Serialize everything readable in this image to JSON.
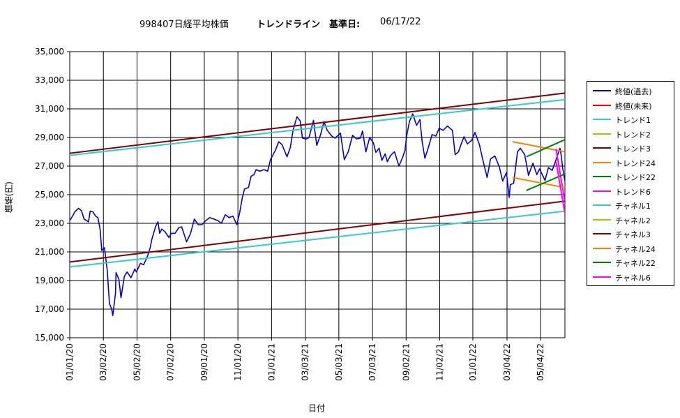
{
  "title": {
    "part1": "998407日経平均株価",
    "part2": "トレンドライン　基準日:",
    "part3": "06/17/22"
  },
  "chart_data": {
    "type": "line",
    "xlabel": "日付",
    "ylabel": "価格(円)",
    "ylim": [
      15000,
      35000
    ],
    "yticks": [
      "15,000",
      "17,000",
      "19,000",
      "21,000",
      "23,000",
      "25,000",
      "27,000",
      "29,000",
      "31,000",
      "33,000",
      "35,000"
    ],
    "xlim": [
      "2020-01-01",
      "2022-06-17"
    ],
    "xticks": [
      "01/01/20",
      "03/02/20",
      "05/02/20",
      "07/02/20",
      "09/01/20",
      "11/01/20",
      "01/01/21",
      "03/03/21",
      "05/03/21",
      "07/03/21",
      "09/02/21",
      "11/02/21",
      "01/01/22",
      "03/04/22",
      "05/04/22"
    ],
    "grid": true,
    "legend_position": "right",
    "series": [
      {
        "name": "終値(過去)",
        "color": "#0000dd",
        "values": [
          [
            "2020-01-01",
            23200
          ],
          [
            "2020-01-06",
            23500
          ],
          [
            "2020-01-10",
            23800
          ],
          [
            "2020-01-17",
            24050
          ],
          [
            "2020-01-22",
            23900
          ],
          [
            "2020-01-27",
            23300
          ],
          [
            "2020-01-31",
            23200
          ],
          [
            "2020-02-04",
            23100
          ],
          [
            "2020-02-07",
            23850
          ],
          [
            "2020-02-12",
            23800
          ],
          [
            "2020-02-17",
            23500
          ],
          [
            "2020-02-21",
            23400
          ],
          [
            "2020-02-25",
            22600
          ],
          [
            "2020-02-28",
            21100
          ],
          [
            "2020-03-04",
            21300
          ],
          [
            "2020-03-09",
            19700
          ],
          [
            "2020-03-13",
            17400
          ],
          [
            "2020-03-17",
            17000
          ],
          [
            "2020-03-19",
            16550
          ],
          [
            "2020-03-24",
            18100
          ],
          [
            "2020-03-25",
            19550
          ],
          [
            "2020-03-30",
            19100
          ],
          [
            "2020-04-03",
            17800
          ],
          [
            "2020-04-09",
            19300
          ],
          [
            "2020-04-14",
            19600
          ],
          [
            "2020-04-21",
            19200
          ],
          [
            "2020-04-28",
            19800
          ],
          [
            "2020-05-01",
            19600
          ],
          [
            "2020-05-08",
            20200
          ],
          [
            "2020-05-14",
            20100
          ],
          [
            "2020-05-20",
            20600
          ],
          [
            "2020-05-26",
            21300
          ],
          [
            "2020-05-29",
            21900
          ],
          [
            "2020-06-05",
            22800
          ],
          [
            "2020-06-09",
            23100
          ],
          [
            "2020-06-12",
            22300
          ],
          [
            "2020-06-16",
            22600
          ],
          [
            "2020-06-22",
            22400
          ],
          [
            "2020-06-29",
            22000
          ],
          [
            "2020-07-03",
            22300
          ],
          [
            "2020-07-10",
            22300
          ],
          [
            "2020-07-17",
            22700
          ],
          [
            "2020-07-22",
            22750
          ],
          [
            "2020-07-31",
            21700
          ],
          [
            "2020-08-07",
            22300
          ],
          [
            "2020-08-14",
            23300
          ],
          [
            "2020-08-21",
            22900
          ],
          [
            "2020-08-28",
            22900
          ],
          [
            "2020-09-04",
            23200
          ],
          [
            "2020-09-11",
            23400
          ],
          [
            "2020-09-18",
            23300
          ],
          [
            "2020-09-25",
            23200
          ],
          [
            "2020-10-02",
            23000
          ],
          [
            "2020-10-09",
            23600
          ],
          [
            "2020-10-16",
            23400
          ],
          [
            "2020-10-23",
            23500
          ],
          [
            "2020-10-30",
            22900
          ],
          [
            "2020-11-04",
            23700
          ],
          [
            "2020-11-09",
            24800
          ],
          [
            "2020-11-13",
            25400
          ],
          [
            "2020-11-20",
            25500
          ],
          [
            "2020-11-25",
            26300
          ],
          [
            "2020-11-30",
            26400
          ],
          [
            "2020-12-04",
            26750
          ],
          [
            "2020-12-11",
            26650
          ],
          [
            "2020-12-18",
            26750
          ],
          [
            "2020-12-25",
            26650
          ],
          [
            "2020-12-30",
            27450
          ],
          [
            "2021-01-08",
            28100
          ],
          [
            "2021-01-14",
            28700
          ],
          [
            "2021-01-20",
            28500
          ],
          [
            "2021-01-29",
            27650
          ],
          [
            "2021-02-04",
            28300
          ],
          [
            "2021-02-09",
            29500
          ],
          [
            "2021-02-16",
            30450
          ],
          [
            "2021-02-22",
            30150
          ],
          [
            "2021-02-26",
            28950
          ],
          [
            "2021-03-05",
            28900
          ],
          [
            "2021-03-10",
            29000
          ],
          [
            "2021-03-18",
            30200
          ],
          [
            "2021-03-24",
            28450
          ],
          [
            "2021-03-31",
            29200
          ],
          [
            "2021-04-06",
            30100
          ],
          [
            "2021-04-12",
            29500
          ],
          [
            "2021-04-20",
            29100
          ],
          [
            "2021-04-26",
            28950
          ],
          [
            "2021-05-06",
            29300
          ],
          [
            "2021-05-13",
            27450
          ],
          [
            "2021-05-20",
            28000
          ],
          [
            "2021-05-28",
            29150
          ],
          [
            "2021-06-04",
            28900
          ],
          [
            "2021-06-11",
            28950
          ],
          [
            "2021-06-15",
            29450
          ],
          [
            "2021-06-21",
            28000
          ],
          [
            "2021-06-28",
            29000
          ],
          [
            "2021-07-05",
            28600
          ],
          [
            "2021-07-09",
            27950
          ],
          [
            "2021-07-15",
            28250
          ],
          [
            "2021-07-20",
            27400
          ],
          [
            "2021-07-26",
            27850
          ],
          [
            "2021-07-30",
            27300
          ],
          [
            "2021-08-05",
            27750
          ],
          [
            "2021-08-12",
            28000
          ],
          [
            "2021-08-20",
            27000
          ],
          [
            "2021-08-27",
            27650
          ],
          [
            "2021-08-31",
            28100
          ],
          [
            "2021-09-03",
            29100
          ],
          [
            "2021-09-08",
            30100
          ],
          [
            "2021-09-14",
            30650
          ],
          [
            "2021-09-21",
            29850
          ],
          [
            "2021-09-27",
            30250
          ],
          [
            "2021-10-01",
            28750
          ],
          [
            "2021-10-06",
            27550
          ],
          [
            "2021-10-12",
            28250
          ],
          [
            "2021-10-19",
            29200
          ],
          [
            "2021-10-26",
            29100
          ],
          [
            "2021-11-01",
            29650
          ],
          [
            "2021-11-08",
            29500
          ],
          [
            "2021-11-16",
            29800
          ],
          [
            "2021-11-25",
            29500
          ],
          [
            "2021-11-30",
            27800
          ],
          [
            "2021-12-06",
            28000
          ],
          [
            "2021-12-10",
            28450
          ],
          [
            "2021-12-16",
            29050
          ],
          [
            "2021-12-22",
            28550
          ],
          [
            "2021-12-30",
            28800
          ],
          [
            "2022-01-05",
            29350
          ],
          [
            "2022-01-13",
            28500
          ],
          [
            "2022-01-19",
            27450
          ],
          [
            "2022-01-27",
            26200
          ],
          [
            "2022-02-02",
            27500
          ],
          [
            "2022-02-10",
            27700
          ],
          [
            "2022-02-18",
            26950
          ],
          [
            "2022-02-24",
            25950
          ],
          [
            "2022-03-03",
            26550
          ],
          [
            "2022-03-08",
            24800
          ],
          [
            "2022-03-10",
            25700
          ],
          [
            "2022-03-16",
            25800
          ],
          [
            "2022-03-23",
            28000
          ],
          [
            "2022-03-28",
            28250
          ],
          [
            "2022-04-05",
            27800
          ],
          [
            "2022-04-12",
            26350
          ],
          [
            "2022-04-20",
            27200
          ],
          [
            "2022-04-27",
            26400
          ],
          [
            "2022-05-02",
            26800
          ],
          [
            "2022-05-12",
            26000
          ],
          [
            "2022-05-18",
            26900
          ],
          [
            "2022-05-25",
            26700
          ],
          [
            "2022-06-01",
            27450
          ],
          [
            "2022-06-08",
            28250
          ],
          [
            "2022-06-10",
            27800
          ],
          [
            "2022-06-13",
            26850
          ],
          [
            "2022-06-14",
            26650
          ],
          [
            "2022-06-17",
            25950
          ]
        ]
      },
      {
        "name": "終値(未来)",
        "color": "#ff0000",
        "values": []
      },
      {
        "name": "トレンド1",
        "color": "#33cccc",
        "values": [
          [
            "2020-01-01",
            27750
          ],
          [
            "2022-06-17",
            31650
          ]
        ]
      },
      {
        "name": "トレンド2",
        "color": "#99cc00",
        "values": []
      },
      {
        "name": "トレンド3",
        "color": "#800000",
        "values": [
          [
            "2020-01-01",
            27900
          ],
          [
            "2022-06-17",
            32100
          ]
        ]
      },
      {
        "name": "トレンド24",
        "color": "#ff8000",
        "values": [
          [
            "2022-03-14",
            28700
          ],
          [
            "2022-06-17",
            28000
          ]
        ]
      },
      {
        "name": "トレンド22",
        "color": "#008000",
        "values": [
          [
            "2022-04-08",
            27650
          ],
          [
            "2022-06-17",
            28850
          ]
        ]
      },
      {
        "name": "トレンド6",
        "color": "#ff00ff",
        "values": [
          [
            "2022-06-01",
            28200
          ],
          [
            "2022-06-17",
            24500
          ]
        ]
      },
      {
        "name": "チャネル1",
        "color": "#33cccc",
        "values": [
          [
            "2020-01-01",
            19950
          ],
          [
            "2022-06-17",
            23850
          ]
        ]
      },
      {
        "name": "チャネル2",
        "color": "#99cc00",
        "values": []
      },
      {
        "name": "チャネル3",
        "color": "#800000",
        "values": [
          [
            "2020-01-01",
            20300
          ],
          [
            "2022-06-17",
            24550
          ]
        ]
      },
      {
        "name": "チャネル24",
        "color": "#ff8000",
        "values": [
          [
            "2022-03-14",
            26200
          ],
          [
            "2022-06-17",
            25500
          ]
        ]
      },
      {
        "name": "チャネル22",
        "color": "#008000",
        "values": [
          [
            "2022-04-08",
            25300
          ],
          [
            "2022-06-17",
            26450
          ]
        ]
      },
      {
        "name": "チャネル6",
        "color": "#ff00ff",
        "values": [
          [
            "2022-06-01",
            27300
          ],
          [
            "2022-06-17",
            23700
          ]
        ]
      }
    ]
  }
}
